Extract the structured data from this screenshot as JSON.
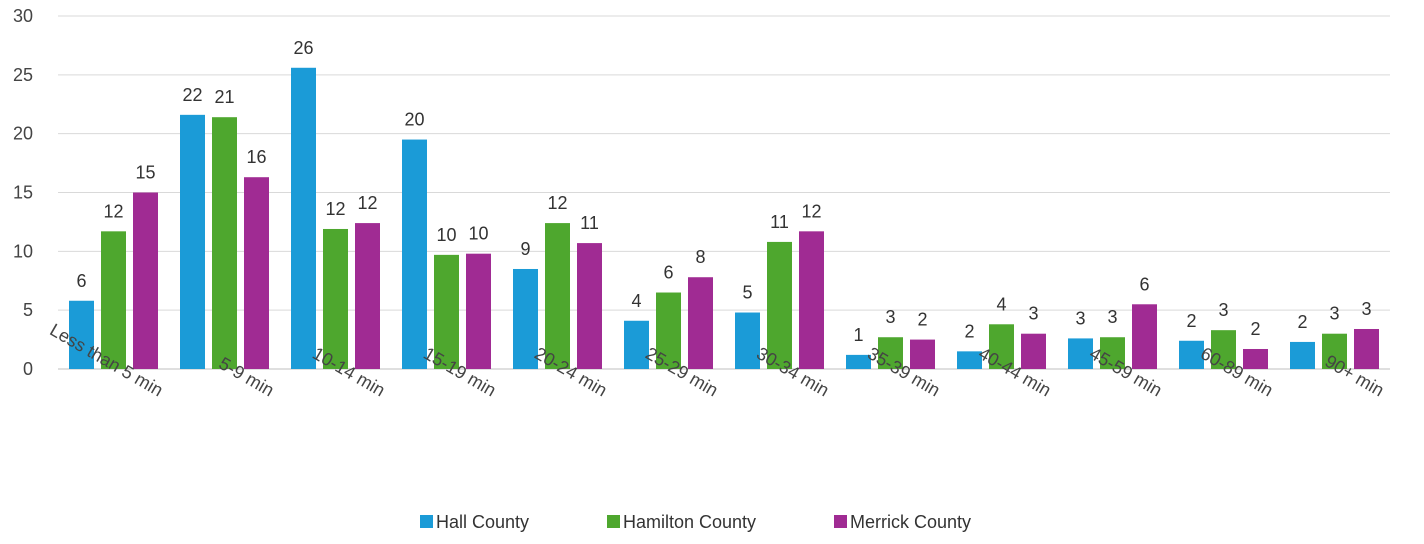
{
  "chart_data": {
    "type": "bar",
    "title": "",
    "xlabel": "",
    "ylabel": "",
    "ylim": [
      0,
      30
    ],
    "yticks": [
      0,
      5,
      10,
      15,
      20,
      25,
      30
    ],
    "grid": true,
    "legend_position": "bottom",
    "categories": [
      "Less than 5 min",
      "5-9 min",
      "10-14 min",
      "15-19 min",
      "20-24 min",
      "25-29 min",
      "30-34 min",
      "35-39 min",
      "40-44 min",
      "45-59 min",
      "60-89 min",
      "90+ min"
    ],
    "series": [
      {
        "name": "Hall County",
        "color": "#1b9bd7",
        "values": [
          5.8,
          21.6,
          25.6,
          19.5,
          8.5,
          4.1,
          4.8,
          1.2,
          1.5,
          2.6,
          2.4,
          2.3
        ],
        "labels": [
          "6",
          "22",
          "26",
          "20",
          "9",
          "4",
          "5",
          "1",
          "2",
          "3",
          "2",
          "2"
        ]
      },
      {
        "name": "Hamilton County",
        "color": "#4ea72e",
        "values": [
          11.7,
          21.4,
          11.9,
          9.7,
          12.4,
          6.5,
          10.8,
          2.7,
          3.8,
          2.7,
          3.3,
          3.0
        ],
        "labels": [
          "12",
          "21",
          "12",
          "10",
          "12",
          "6",
          "11",
          "3",
          "4",
          "3",
          "3",
          "3"
        ]
      },
      {
        "name": "Merrick County",
        "color": "#a02b93",
        "values": [
          15.0,
          16.3,
          12.4,
          9.8,
          10.7,
          7.8,
          11.7,
          2.5,
          3.0,
          5.5,
          1.7,
          3.4
        ],
        "labels": [
          "15",
          "16",
          "12",
          "10",
          "11",
          "8",
          "12",
          "2",
          "3",
          "6",
          "2",
          "3"
        ]
      }
    ]
  }
}
